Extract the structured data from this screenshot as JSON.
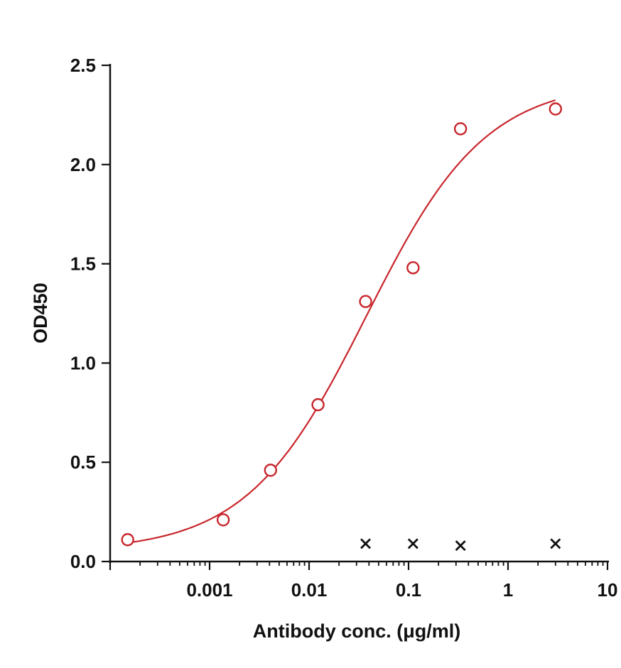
{
  "chart_data": {
    "type": "scatter",
    "xlabel": "Antibody conc. (μg/ml)",
    "ylabel": "OD450",
    "x_scale": "log",
    "xlim": [
      0.0001,
      10
    ],
    "ylim": [
      0,
      2.5
    ],
    "grid": false,
    "x_ticks": [
      {
        "value": 0.001,
        "label": "0.001"
      },
      {
        "value": 0.01,
        "label": "0.01"
      },
      {
        "value": 0.1,
        "label": "0.1"
      },
      {
        "value": 1,
        "label": "1"
      },
      {
        "value": 10,
        "label": "10"
      }
    ],
    "y_ticks": [
      {
        "value": 0.0,
        "label": "0.0"
      },
      {
        "value": 0.5,
        "label": "0.5"
      },
      {
        "value": 1.0,
        "label": "1.0"
      },
      {
        "value": 1.5,
        "label": "1.5"
      },
      {
        "value": 2.0,
        "label": "2.0"
      },
      {
        "value": 2.5,
        "label": "2.5"
      }
    ],
    "series": [
      {
        "marker": "circle",
        "color": "#c8262c",
        "fit_curve": true,
        "x": [
          0.00015,
          0.00137,
          0.0041,
          0.0123,
          0.037,
          0.111,
          0.333,
          3.0
        ],
        "y": [
          0.11,
          0.21,
          0.46,
          0.79,
          1.31,
          1.48,
          2.18,
          2.28
        ]
      },
      {
        "marker": "x",
        "color": "#111111",
        "fit_curve": false,
        "x": [
          0.037,
          0.111,
          0.333,
          3.0
        ],
        "y": [
          0.09,
          0.09,
          0.08,
          0.09
        ]
      }
    ]
  }
}
